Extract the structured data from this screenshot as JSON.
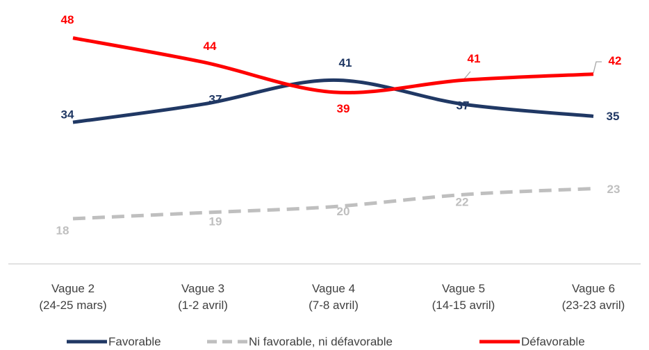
{
  "chart_data": {
    "type": "line",
    "categories": [
      "Vague 2\n(24-25 mars)",
      "Vague 3\n(1-2 avril)",
      "Vague 4\n(7-8 avril)",
      "Vague 5\n(14-15 avril)",
      "Vague 6\n(23-23 avril)"
    ],
    "series": [
      {
        "name": "Favorable",
        "color": "#203864",
        "dashed": false,
        "values": [
          34,
          37,
          41,
          37,
          35
        ]
      },
      {
        "name": "Ni favorable, ni défavorable",
        "color": "#bfbfbf",
        "dashed": true,
        "values": [
          18,
          19,
          20,
          22,
          23
        ]
      },
      {
        "name": "Défavorable",
        "color": "#ff0000",
        "dashed": false,
        "values": [
          48,
          44,
          39,
          41,
          42
        ]
      }
    ],
    "ylim": [
      10.5,
      54.3
    ],
    "grid": false,
    "legend": "bottom"
  }
}
